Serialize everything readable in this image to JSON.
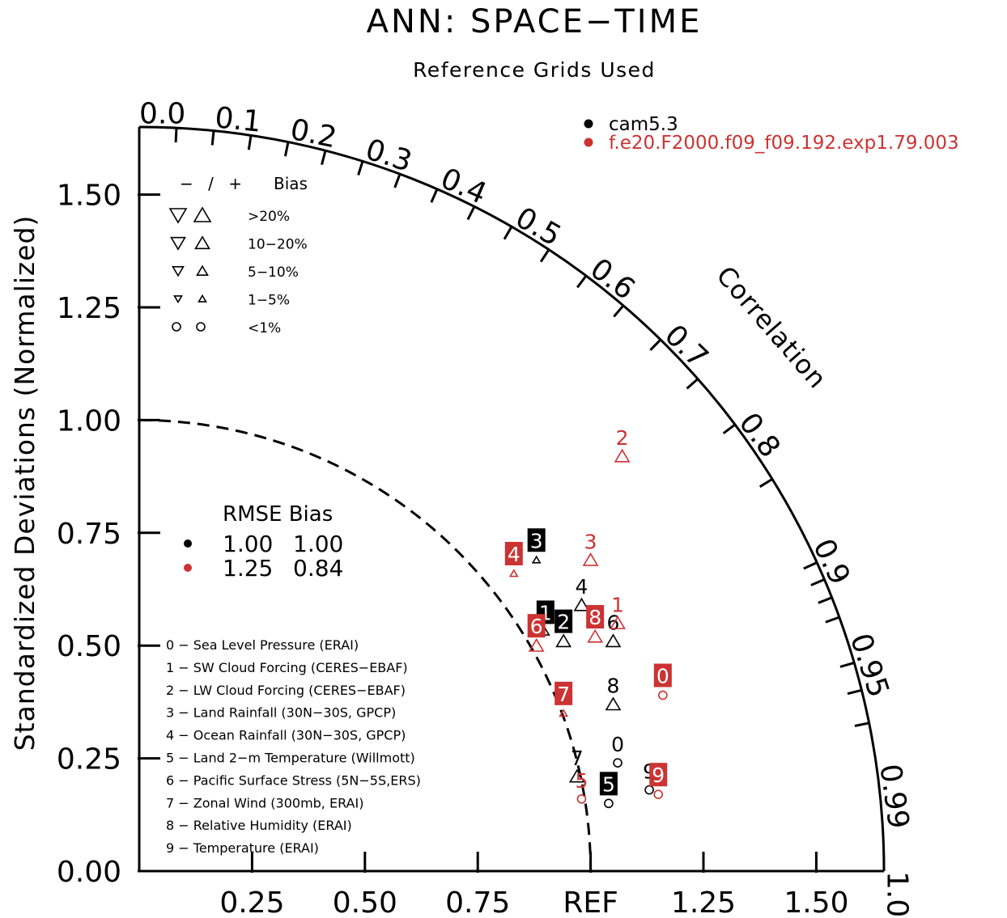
{
  "chart_data": {
    "type": "scatter",
    "title": "ANN: SPACE−TIME",
    "subtitle": "Reference Grids Used",
    "ylabel": "Standardized Deviations (Normalized)",
    "angular_label": "Correlation",
    "ylim": [
      0,
      1.65
    ],
    "xlim": [
      0,
      1.65
    ],
    "y_ticks": [
      "0.00",
      "0.25",
      "0.50",
      "0.75",
      "1.00",
      "1.25",
      "1.50"
    ],
    "x_ticks": [
      "0.25",
      "0.50",
      "0.75",
      "REF",
      "1.25",
      "1.50"
    ],
    "correlation_ticks": [
      "0.0",
      "0.1",
      "0.2",
      "0.3",
      "0.4",
      "0.5",
      "0.6",
      "0.7",
      "0.8",
      "0.9",
      "0.95",
      "0.99",
      "1.0"
    ],
    "colors": {
      "cam": "#000000",
      "f_e20": "#cc3333"
    },
    "case_legend": [
      {
        "name": "cam5.3",
        "color": "#000000"
      },
      {
        "name": "f.e20.F2000.f09_f09.192.exp1.79.003",
        "color": "#cc3333"
      }
    ],
    "bias_legend": {
      "header_sign": "− / +",
      "header_label": "Bias",
      "rows": [
        ">20%",
        "10−20%",
        "5−10%",
        "1−5%",
        "<1%"
      ]
    },
    "rmse_legend": {
      "header": "RMSE Bias",
      "rows": [
        {
          "rmse": "1.00",
          "bias": "1.00",
          "color": "#000000"
        },
        {
          "rmse": "1.25",
          "bias": "0.84",
          "color": "#cc3333"
        }
      ]
    },
    "variables": [
      "0 − Sea Level Pressure (ERAI)",
      "1 − SW Cloud Forcing (CERES−EBAF)",
      "2 − LW Cloud Forcing (CERES−EBAF)",
      "3 − Land Rainfall (30N−30S, GPCP)",
      "4 − Ocean Rainfall (30N−30S, GPCP)",
      "5 − Land 2−m Temperature (Willmott)",
      "6 − Pacific Surface Stress (5N−5S,ERS)",
      "7 − Zonal Wind (300mb, ERAI)",
      "8 − Relative Humidity (ERAI)",
      "9 − Temperature (ERAI)"
    ],
    "series": [
      {
        "name": "cam5.3",
        "color": "#000000",
        "points": [
          {
            "id": "0",
            "x": 1.06,
            "y": 0.24,
            "marker": "circle",
            "boxed": false
          },
          {
            "id": "1",
            "x": 0.9,
            "y": 0.53,
            "marker": "up-small",
            "boxed": true
          },
          {
            "id": "2",
            "x": 0.94,
            "y": 0.51,
            "marker": "up-large",
            "boxed": true
          },
          {
            "id": "3",
            "x": 0.88,
            "y": 0.69,
            "marker": "up-small",
            "boxed": true
          },
          {
            "id": "4",
            "x": 0.98,
            "y": 0.59,
            "marker": "up-large",
            "boxed": false
          },
          {
            "id": "5",
            "x": 1.04,
            "y": 0.15,
            "marker": "circle",
            "boxed": true
          },
          {
            "id": "6",
            "x": 1.05,
            "y": 0.51,
            "marker": "up-large",
            "boxed": false
          },
          {
            "id": "7",
            "x": 0.97,
            "y": 0.21,
            "marker": "up-large",
            "boxed": false
          },
          {
            "id": "8",
            "x": 1.05,
            "y": 0.37,
            "marker": "up-large",
            "boxed": false
          },
          {
            "id": "9",
            "x": 1.13,
            "y": 0.18,
            "marker": "circle",
            "boxed": false
          }
        ]
      },
      {
        "name": "f.e20.F2000.f09_f09.192.exp1.79.003",
        "color": "#cc3333",
        "points": [
          {
            "id": "0",
            "x": 1.16,
            "y": 0.39,
            "marker": "circle",
            "boxed": true
          },
          {
            "id": "1",
            "x": 1.06,
            "y": 0.55,
            "marker": "up-large",
            "boxed": false
          },
          {
            "id": "2",
            "x": 1.07,
            "y": 0.92,
            "marker": "up-large",
            "boxed": false
          },
          {
            "id": "3",
            "x": 1.0,
            "y": 0.69,
            "marker": "up-large",
            "boxed": false
          },
          {
            "id": "4",
            "x": 0.83,
            "y": 0.66,
            "marker": "up-small",
            "boxed": true
          },
          {
            "id": "5",
            "x": 0.98,
            "y": 0.16,
            "marker": "circle",
            "boxed": false
          },
          {
            "id": "6",
            "x": 0.88,
            "y": 0.5,
            "marker": "up-large",
            "boxed": true
          },
          {
            "id": "7",
            "x": 0.94,
            "y": 0.35,
            "marker": "up-small",
            "boxed": true
          },
          {
            "id": "8",
            "x": 1.01,
            "y": 0.52,
            "marker": "up-large",
            "boxed": true
          },
          {
            "id": "9",
            "x": 1.15,
            "y": 0.17,
            "marker": "circle",
            "boxed": true
          }
        ]
      }
    ],
    "grid": false
  }
}
